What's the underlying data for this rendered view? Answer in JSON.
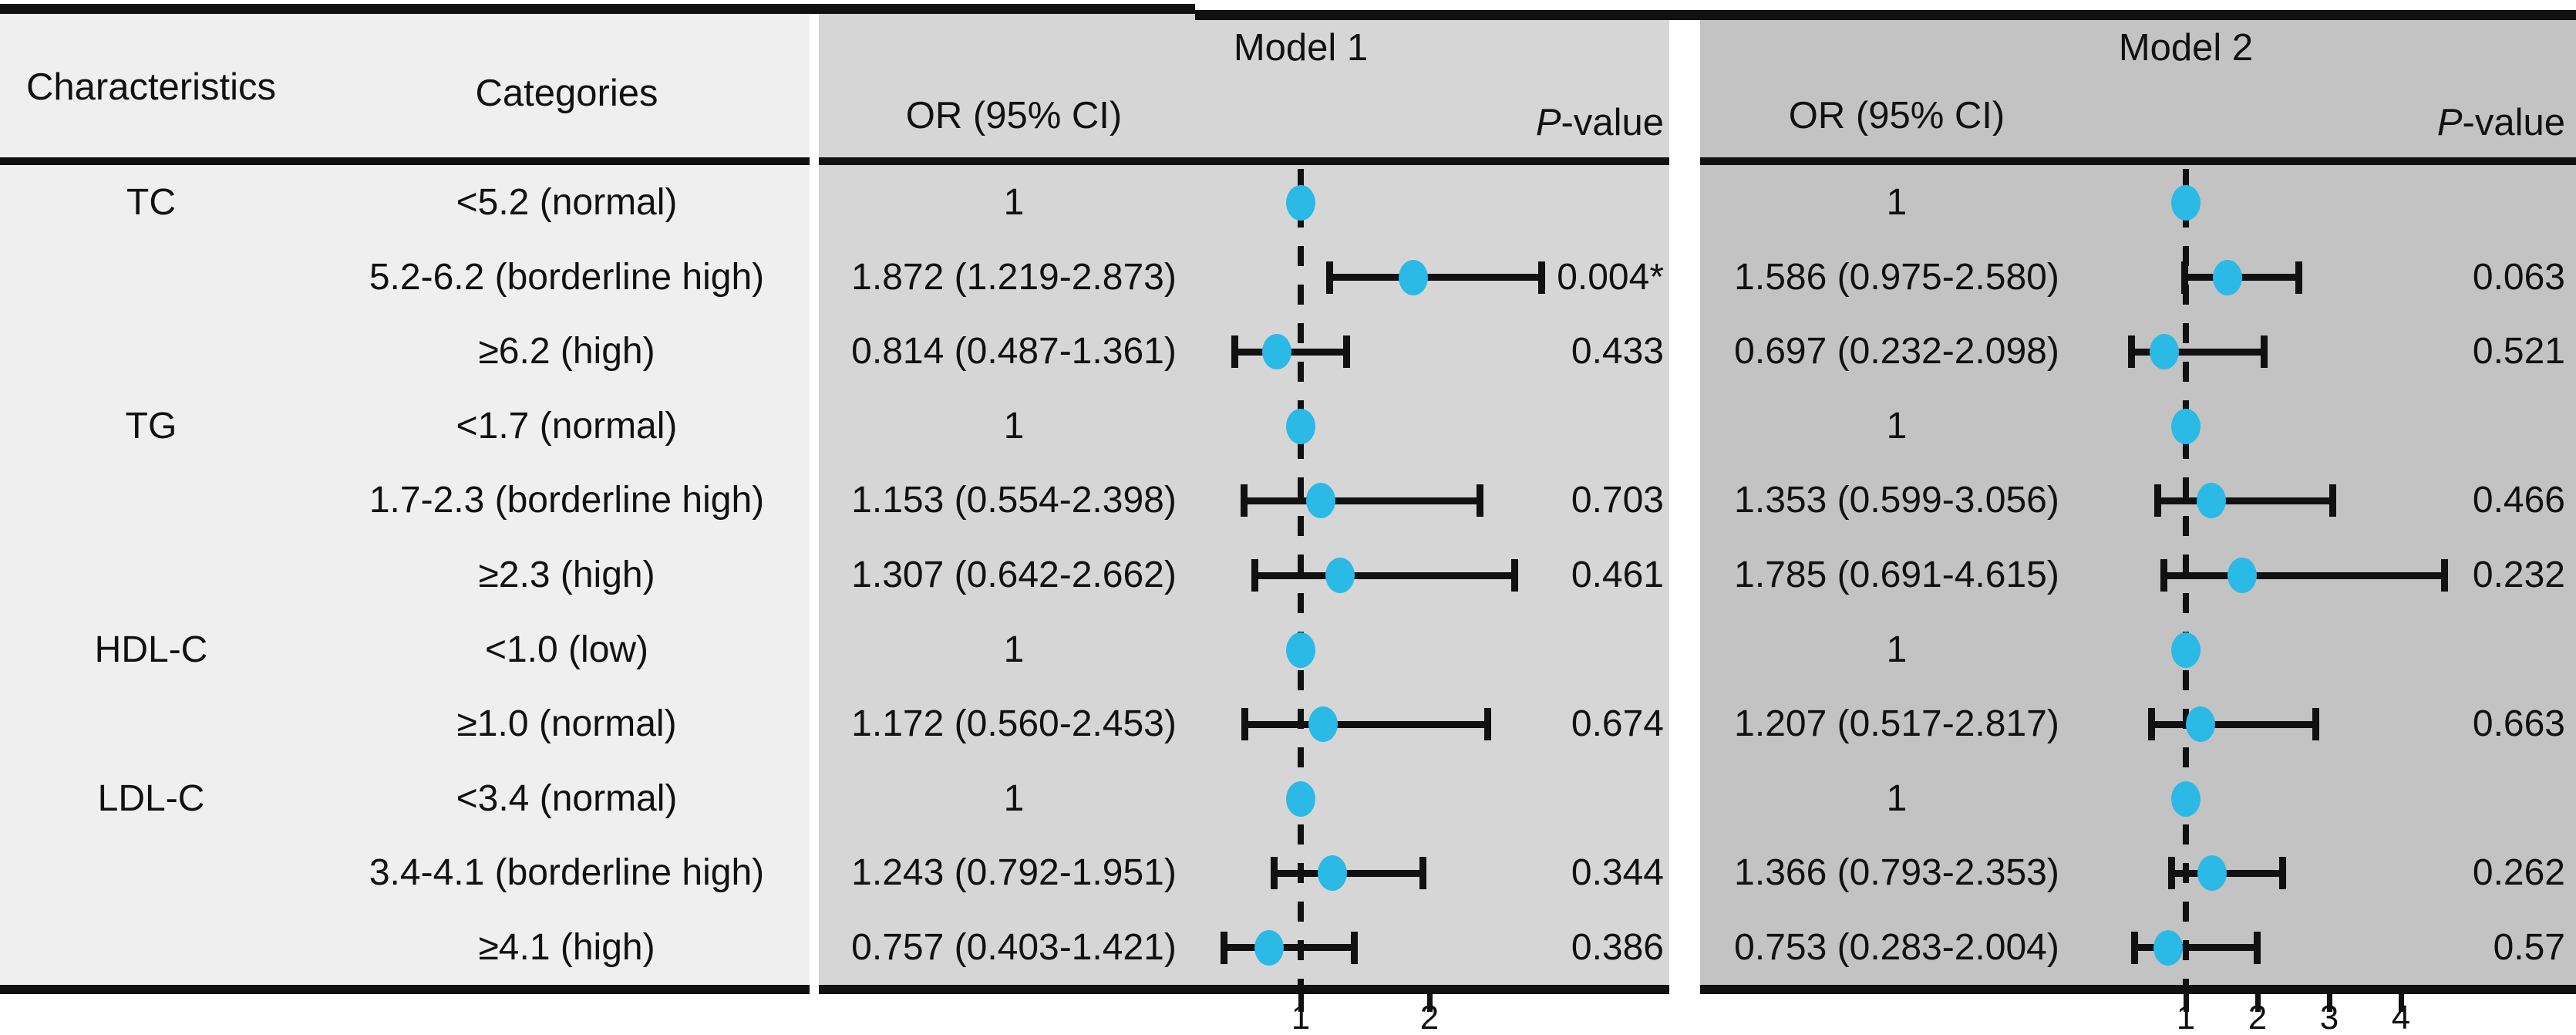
{
  "figure": {
    "type_label": "forest plot comparison table"
  },
  "table": {
    "col_headers": {
      "characteristics": "Characteristics",
      "categories": "Categories",
      "or_ci": "OR (95% CI)",
      "p_italic": "P",
      "p_rest": "-value"
    },
    "models": [
      {
        "name": "Model 1"
      },
      {
        "name": "Model 2"
      }
    ],
    "rows": [
      {
        "characteristic": "TC",
        "category": "<5.2 (normal)",
        "m1": {
          "or_text": "1",
          "p": ""
        },
        "m2": {
          "or_text": "1",
          "p": ""
        }
      },
      {
        "characteristic": "",
        "category": "5.2-6.2 (borderline high)",
        "m1": {
          "or_text": "1.872 (1.219-2.873)",
          "p": "0.004*"
        },
        "m2": {
          "or_text": "1.586 (0.975-2.580)",
          "p": "0.063"
        }
      },
      {
        "characteristic": "",
        "category": "≥6.2 (high)",
        "m1": {
          "or_text": "0.814 (0.487-1.361)",
          "p": "0.433"
        },
        "m2": {
          "or_text": "0.697 (0.232-2.098)",
          "p": "0.521"
        }
      },
      {
        "characteristic": "TG",
        "category": "<1.7 (normal)",
        "m1": {
          "or_text": "1",
          "p": ""
        },
        "m2": {
          "or_text": "1",
          "p": ""
        }
      },
      {
        "characteristic": "",
        "category": "1.7-2.3 (borderline high)",
        "m1": {
          "or_text": "1.153 (0.554-2.398)",
          "p": "0.703"
        },
        "m2": {
          "or_text": "1.353 (0.599-3.056)",
          "p": "0.466"
        }
      },
      {
        "characteristic": "",
        "category": "≥2.3 (high)",
        "m1": {
          "or_text": "1.307 (0.642-2.662)",
          "p": "0.461"
        },
        "m2": {
          "or_text": "1.785 (0.691-4.615)",
          "p": "0.232"
        }
      },
      {
        "characteristic": "HDL-C",
        "category": "<1.0 (low)",
        "m1": {
          "or_text": "1",
          "p": ""
        },
        "m2": {
          "or_text": "1",
          "p": ""
        }
      },
      {
        "characteristic": "",
        "category": "≥1.0 (normal)",
        "m1": {
          "or_text": "1.172 (0.560-2.453)",
          "p": "0.674"
        },
        "m2": {
          "or_text": "1.207 (0.517-2.817)",
          "p": "0.663"
        }
      },
      {
        "characteristic": "LDL-C",
        "category": "<3.4 (normal)",
        "m1": {
          "or_text": "1",
          "p": ""
        },
        "m2": {
          "or_text": "1",
          "p": ""
        }
      },
      {
        "characteristic": "",
        "category": "3.4-4.1 (borderline high)",
        "m1": {
          "or_text": "1.243 (0.792-1.951)",
          "p": "0.344"
        },
        "m2": {
          "or_text": "1.366 (0.793-2.353)",
          "p": "0.262"
        }
      },
      {
        "characteristic": "",
        "category": "≥4.1 (high)",
        "m1": {
          "or_text": "0.757 (0.403-1.421)",
          "p": "0.386"
        },
        "m2": {
          "or_text": "0.753 (0.283-2.004)",
          "p": "0.57"
        }
      }
    ]
  },
  "chart_data": [
    {
      "type": "forest",
      "model": "Model 1",
      "categories": [
        "<5.2 (normal)",
        "5.2-6.2 (borderline high)",
        "≥6.2 (high)",
        "<1.7 (normal)",
        "1.7-2.3 (borderline high)",
        "≥2.3 (high)",
        "<1.0 (low)",
        "≥1.0 (normal)",
        "<3.4 (normal)",
        "3.4-4.1 (borderline high)",
        "≥4.1 (high)"
      ],
      "or": [
        1,
        1.872,
        0.814,
        1,
        1.153,
        1.307,
        1,
        1.172,
        1,
        1.243,
        0.757
      ],
      "ci_low": [
        null,
        1.219,
        0.487,
        null,
        0.554,
        0.642,
        null,
        0.56,
        null,
        0.792,
        0.403
      ],
      "ci_high": [
        null,
        2.873,
        1.361,
        null,
        2.398,
        2.662,
        null,
        2.453,
        null,
        1.951,
        1.421
      ],
      "p": [
        null,
        "0.004*",
        "0.433",
        null,
        "0.703",
        "0.461",
        null,
        "0.674",
        null,
        "0.344",
        "0.386"
      ],
      "reference_line": 1,
      "x_ticks": [
        1,
        2
      ]
    },
    {
      "type": "forest",
      "model": "Model 2",
      "categories": [
        "<5.2 (normal)",
        "5.2-6.2 (borderline high)",
        "≥6.2 (high)",
        "<1.7 (normal)",
        "1.7-2.3 (borderline high)",
        "≥2.3 (high)",
        "<1.0 (low)",
        "≥1.0 (normal)",
        "<3.4 (normal)",
        "3.4-4.1 (borderline high)",
        "≥4.1 (high)"
      ],
      "or": [
        1,
        1.586,
        0.697,
        1,
        1.353,
        1.785,
        1,
        1.207,
        1,
        1.366,
        0.753
      ],
      "ci_low": [
        null,
        0.975,
        0.232,
        null,
        0.599,
        0.691,
        null,
        0.517,
        null,
        0.793,
        0.283
      ],
      "ci_high": [
        null,
        2.58,
        2.098,
        null,
        3.056,
        4.615,
        null,
        2.817,
        null,
        2.353,
        2.004
      ],
      "p": [
        null,
        "0.063",
        "0.521",
        null,
        "0.466",
        "0.232",
        null,
        "0.663",
        null,
        "0.262",
        "0.57"
      ],
      "reference_line": 1,
      "x_ticks": [
        1,
        2,
        3,
        4
      ]
    }
  ],
  "colors": {
    "left_section_bg": "#efefef",
    "model1_bg": "#d6d6d6",
    "model2_bg": "#c3c3c3",
    "marker": "#2bb9e6",
    "line": "#111111"
  }
}
